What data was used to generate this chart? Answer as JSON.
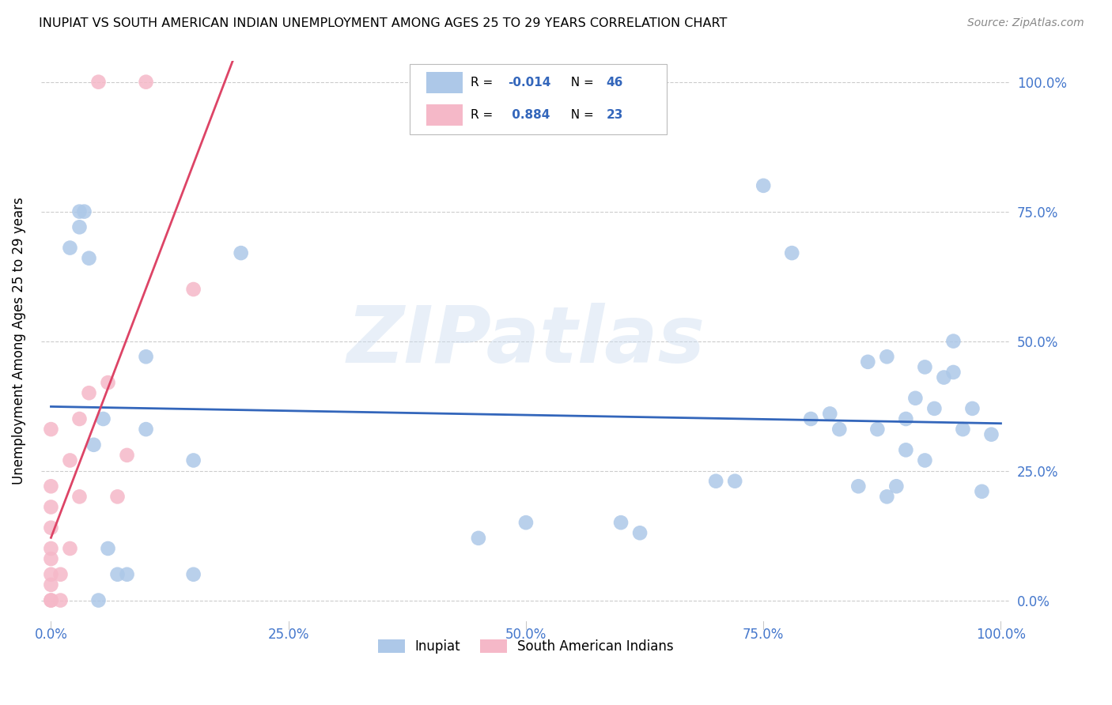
{
  "title": "INUPIAT VS SOUTH AMERICAN INDIAN UNEMPLOYMENT AMONG AGES 25 TO 29 YEARS CORRELATION CHART",
  "source": "Source: ZipAtlas.com",
  "xlabel_values": [
    0.0,
    25.0,
    50.0,
    75.0,
    100.0
  ],
  "ylabel_values": [
    0.0,
    25.0,
    50.0,
    75.0,
    100.0
  ],
  "ylabel": "Unemployment Among Ages 25 to 29 years",
  "blue_r": "-0.014",
  "blue_n": "46",
  "pink_r": "0.884",
  "pink_n": "23",
  "blue_color": "#adc8e8",
  "pink_color": "#f5b8c8",
  "blue_line_color": "#3366bb",
  "pink_line_color": "#dd4466",
  "tick_color": "#4477cc",
  "legend_label_blue": "Inupiat",
  "legend_label_pink": "South American Indians",
  "watermark": "ZIPatlas",
  "blue_points_x": [
    2,
    3,
    3.5,
    4,
    5,
    6,
    7,
    8,
    10,
    10,
    15,
    20,
    45,
    50,
    60,
    62,
    70,
    72,
    75,
    78,
    80,
    82,
    83,
    85,
    86,
    87,
    88,
    88,
    89,
    90,
    90,
    91,
    92,
    92,
    93,
    94,
    95,
    95,
    96,
    97,
    98,
    99,
    3,
    4.5,
    5.5,
    15
  ],
  "blue_points_y": [
    68,
    75,
    75,
    66,
    0,
    10,
    5,
    5,
    47,
    33,
    27,
    67,
    12,
    15,
    15,
    13,
    23,
    23,
    80,
    67,
    35,
    36,
    33,
    22,
    46,
    33,
    20,
    47,
    22,
    29,
    35,
    39,
    45,
    27,
    37,
    43,
    44,
    50,
    33,
    37,
    21,
    32,
    72,
    30,
    35,
    5
  ],
  "pink_points_x": [
    0,
    0,
    0,
    0,
    0,
    0,
    0,
    0,
    0,
    0,
    1,
    1,
    2,
    2,
    3,
    3,
    4,
    5,
    6,
    7,
    8,
    10,
    15
  ],
  "pink_points_y": [
    0,
    0,
    3,
    5,
    8,
    10,
    14,
    18,
    22,
    33,
    0,
    5,
    10,
    27,
    20,
    35,
    40,
    100,
    42,
    20,
    28,
    100,
    60
  ]
}
